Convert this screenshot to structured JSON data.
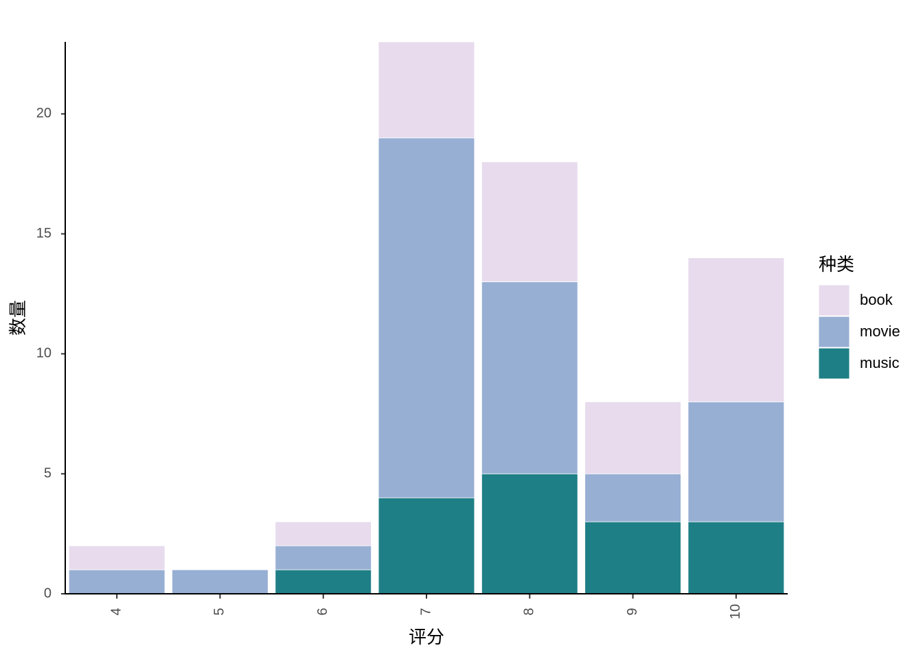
{
  "chart_data": {
    "type": "stacked_bar",
    "x_label": "评分",
    "y_label": "数量",
    "legend_title": "种类",
    "categories": [
      "4",
      "5",
      "6",
      "7",
      "8",
      "9",
      "10"
    ],
    "series": [
      {
        "name": "book",
        "color": "#e7dbed",
        "values": [
          1,
          0,
          1,
          4,
          5,
          3,
          6
        ]
      },
      {
        "name": "movie",
        "color": "#98afd4",
        "values": [
          1,
          1,
          1,
          15,
          8,
          2,
          5
        ]
      },
      {
        "name": "music",
        "color": "#1f7f86",
        "values": [
          0,
          0,
          1,
          4,
          5,
          3,
          3
        ]
      }
    ],
    "ylim": [
      0,
      23
    ],
    "yticks": [
      0,
      5,
      10,
      15,
      20
    ],
    "grid": false,
    "legend_position": "right"
  }
}
